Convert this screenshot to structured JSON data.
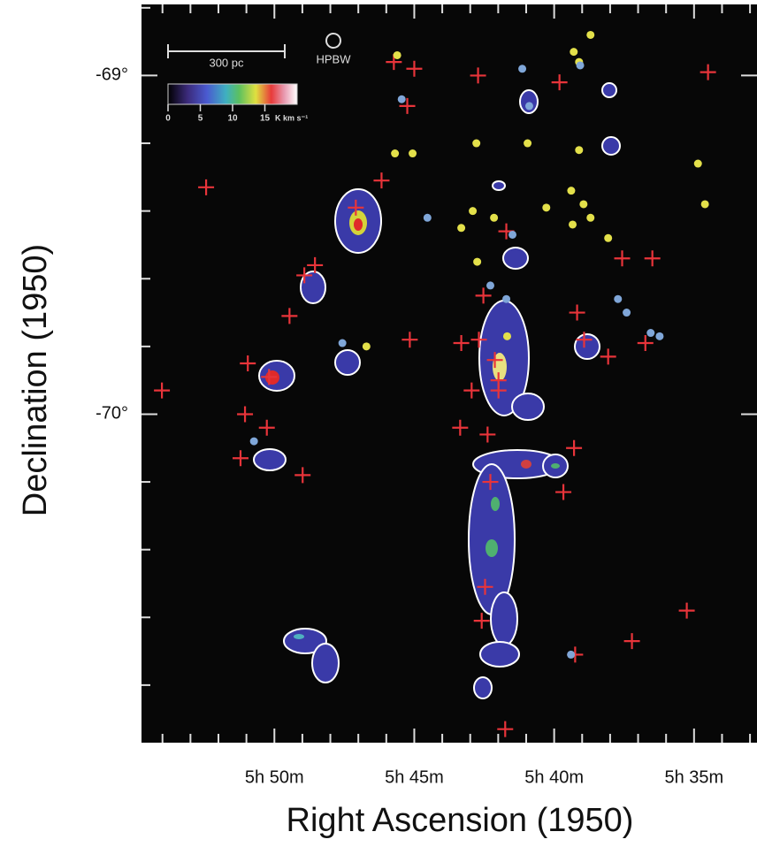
{
  "chart_data": {
    "type": "scatter",
    "xlabel": "Right Ascension (1950)",
    "ylabel": "Declination (1950)",
    "xlim": [
      54.75,
      32.75
    ],
    "ylim": [
      -70.97,
      -68.79
    ],
    "xticks": [
      {
        "value": 50,
        "label": "5h 50m"
      },
      {
        "value": 45,
        "label": "5h 45m"
      },
      {
        "value": 40,
        "label": "5h 40m"
      },
      {
        "value": 35,
        "label": "5h 35m"
      }
    ],
    "yticks": [
      {
        "value": -69,
        "label": "-69°"
      },
      {
        "value": -70,
        "label": "-70°"
      }
    ],
    "xminorticks": [
      54,
      53,
      52,
      51,
      49,
      48,
      47,
      46,
      44,
      43,
      42,
      41,
      39,
      38,
      37,
      36,
      34,
      33
    ],
    "yminorticks": [
      -68.8,
      -69.2,
      -69.4,
      -69.6,
      -69.8,
      -70.2,
      -70.4,
      -70.6,
      -70.8
    ],
    "scale_bar_label": "300 pc",
    "beam_label": "HPBW",
    "colorbar": {
      "lim": [
        0,
        20
      ],
      "ticks": [
        0,
        5,
        10,
        15
      ],
      "label": "K km s⁻¹"
    },
    "series": [
      {
        "marker": "plus",
        "color": "#e8343a",
        "x": [
          54.02,
          52.44,
          45.73,
          45.0,
          42.72,
          45.25,
          39.81,
          34.5,
          46.17,
          47.09,
          48.55,
          48.93,
          41.71,
          37.57,
          36.49,
          42.53,
          39.18,
          49.46,
          45.16,
          43.32,
          42.69,
          38.93,
          36.74,
          38.07,
          50.95,
          42.12,
          41.99,
          50.19,
          42.95,
          41.99,
          51.05,
          43.36,
          50.27,
          42.38,
          51.21,
          39.29,
          42.28,
          48.99,
          39.67,
          42.47,
          42.59,
          35.26,
          37.22,
          39.25,
          41.75
        ],
        "values": [
          -69.93,
          -69.33,
          -68.96,
          -68.98,
          -69.0,
          -69.09,
          -69.02,
          -68.99,
          -69.31,
          -69.39,
          -69.56,
          -69.59,
          -69.46,
          -69.54,
          -69.54,
          -69.65,
          -69.7,
          -69.71,
          -69.78,
          -69.79,
          -69.78,
          -69.78,
          -69.79,
          -69.83,
          -69.85,
          -69.84,
          -69.9,
          -69.89,
          -69.93,
          -69.93,
          -70.0,
          -70.04,
          -70.04,
          -70.06,
          -70.13,
          -70.1,
          -70.2,
          -70.18,
          -70.23,
          -70.51,
          -70.61,
          -70.58,
          -70.67,
          -70.71,
          -70.93
        ]
      },
      {
        "marker": "circle",
        "color": "#e3e04a",
        "x": [
          45.61,
          39.3,
          38.7,
          39.11,
          45.69,
          45.06,
          42.78,
          40.95,
          39.11,
          34.86,
          34.61,
          42.91,
          43.32,
          42.15,
          40.28,
          39.39,
          38.95,
          39.34,
          38.7,
          38.07,
          42.75,
          46.71,
          41.68
        ],
        "values": [
          -68.94,
          -68.93,
          -68.88,
          -68.96,
          -69.23,
          -69.23,
          -69.2,
          -69.2,
          -69.22,
          -69.26,
          -69.38,
          -69.4,
          -69.45,
          -69.42,
          -69.39,
          -69.34,
          -69.38,
          -69.44,
          -69.42,
          -69.48,
          -69.55,
          -69.8,
          -69.77
        ]
      },
      {
        "marker": "circle",
        "color": "#7fa6d8",
        "x": [
          41.14,
          39.07,
          45.45,
          40.89,
          44.53,
          41.49,
          42.28,
          41.71,
          37.72,
          37.41,
          47.57,
          36.55,
          36.23,
          50.73,
          39.4
        ],
        "values": [
          -68.98,
          -68.97,
          -69.07,
          -69.09,
          -69.42,
          -69.47,
          -69.62,
          -69.66,
          -69.66,
          -69.7,
          -69.79,
          -69.76,
          -69.77,
          -70.08,
          -70.71
        ]
      }
    ]
  }
}
